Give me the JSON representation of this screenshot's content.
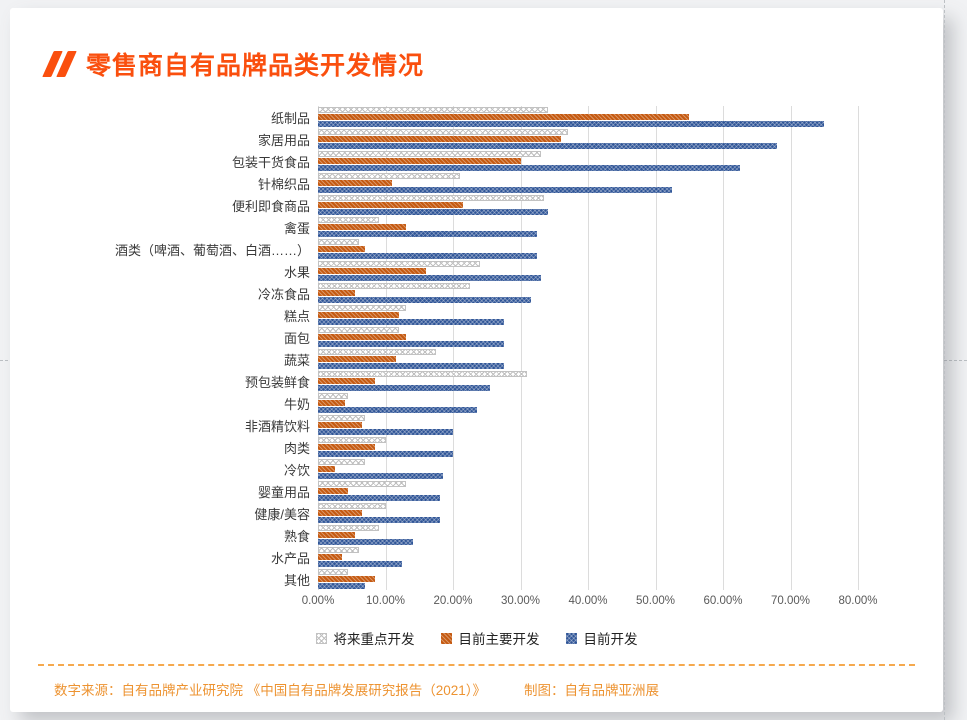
{
  "page": {
    "background": "#f1f2f4",
    "card_background": "#ffffff"
  },
  "header": {
    "title": "零售商自有品牌品类开发情况",
    "accent_color": "#fa4f0e"
  },
  "chart_data": {
    "type": "bar",
    "orientation": "horizontal",
    "title": "零售商自有品牌品类开发情况",
    "xlabel": "",
    "ylabel": "",
    "xlim": [
      0,
      80
    ],
    "grid": true,
    "legend_position": "bottom",
    "x_ticks": [
      "0.00%",
      "10.00%",
      "20.00%",
      "30.00%",
      "40.00%",
      "50.00%",
      "60.00%",
      "70.00%",
      "80.00%"
    ],
    "x_tick_values": [
      0,
      10,
      20,
      30,
      40,
      50,
      60,
      70,
      80
    ],
    "categories": [
      "纸制品",
      "家居用品",
      "包装干货食品",
      "针棉织品",
      "便利即食商品",
      "禽蛋",
      "酒类（啤酒、葡萄酒、白酒……）",
      "水果",
      "冷冻食品",
      "糕点",
      "面包",
      "蔬菜",
      "预包装鲜食",
      "牛奶",
      "非酒精饮料",
      "肉类",
      "冷饮",
      "婴童用品",
      "健康/美容",
      "熟食",
      "水产品",
      "其他"
    ],
    "series": [
      {
        "name": "将来重点开发",
        "color": "#bfbfbf",
        "pattern": "diamond-hatch-light",
        "values": [
          34,
          37,
          33,
          21,
          33.5,
          9,
          6,
          24,
          22.5,
          13,
          12,
          17.5,
          31,
          4.5,
          7,
          10,
          7,
          13,
          10,
          9,
          6,
          4.5
        ]
      },
      {
        "name": "目前主要开发",
        "color": "#c55a11",
        "pattern": "hatch-orange",
        "values": [
          55,
          36,
          30,
          11,
          21.5,
          13,
          7,
          16,
          5.5,
          12,
          13,
          11.5,
          8.5,
          4,
          6.5,
          8.5,
          2.5,
          4.5,
          6.5,
          5.5,
          3.5,
          8.5
        ]
      },
      {
        "name": "目前开发",
        "color": "#2f5597",
        "pattern": "diamond-hatch-blue",
        "values": [
          75,
          68,
          62.5,
          52.5,
          34,
          32.5,
          32.5,
          33,
          31.5,
          27.5,
          27.5,
          27.5,
          25.5,
          23.5,
          20,
          20,
          18.5,
          18,
          18,
          14,
          12.5,
          7
        ]
      }
    ]
  },
  "footer": {
    "source": "数字来源：自有品牌产业研究院 《中国自有品牌发展研究报告（2021）》",
    "credit": "制图：自有品牌亚洲展",
    "color": "#ed9331",
    "divider_color": "#f5a94e"
  }
}
